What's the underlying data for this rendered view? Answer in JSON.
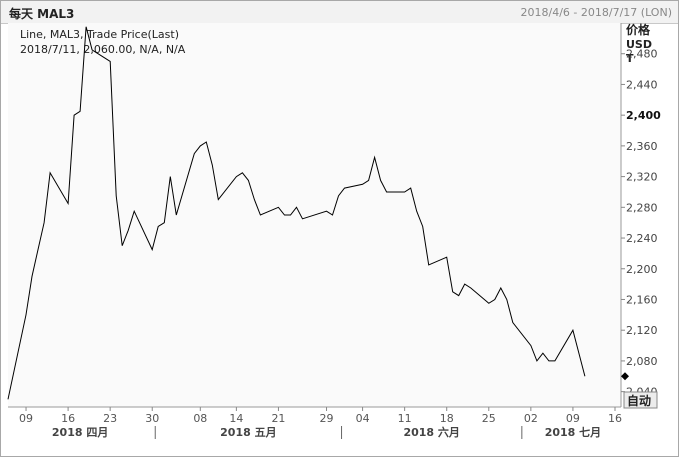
{
  "header": {
    "title": "每天 MAL3",
    "date_range": "2018/4/6 - 2018/7/17 (LON)"
  },
  "legend": {
    "line1": "Line, MAL3, Trade Price(Last)",
    "line2": "2018/7/11, 2,060.00, N/A, N/A"
  },
  "axis": {
    "y_title_line1": "价格",
    "y_title_line2": "USD",
    "y_title_line3": "T",
    "auto_button": "自动"
  },
  "chart_data": {
    "type": "line",
    "ylim": [
      2020,
      2520
    ],
    "y_ticks": [
      {
        "value": 2040,
        "label": "2,040"
      },
      {
        "value": 2080,
        "label": "2,080"
      },
      {
        "value": 2120,
        "label": "2,120"
      },
      {
        "value": 2160,
        "label": "2,160"
      },
      {
        "value": 2200,
        "label": "2,200"
      },
      {
        "value": 2240,
        "label": "2,240"
      },
      {
        "value": 2280,
        "label": "2,280"
      },
      {
        "value": 2320,
        "label": "2,320"
      },
      {
        "value": 2360,
        "label": "2,360"
      },
      {
        "value": 2400,
        "label": "2,400",
        "bold": true
      },
      {
        "value": 2440,
        "label": "2,440"
      },
      {
        "value": 2480,
        "label": "2,480"
      }
    ],
    "xlim": [
      "2018-04-06",
      "2018-07-17"
    ],
    "x_ticks": [
      {
        "date": "2018-04-09",
        "label": "09"
      },
      {
        "date": "2018-04-16",
        "label": "16"
      },
      {
        "date": "2018-04-23",
        "label": "23"
      },
      {
        "date": "2018-04-30",
        "label": "30"
      },
      {
        "date": "2018-05-08",
        "label": "08"
      },
      {
        "date": "2018-05-14",
        "label": "14"
      },
      {
        "date": "2018-05-21",
        "label": "21"
      },
      {
        "date": "2018-05-29",
        "label": "29"
      },
      {
        "date": "2018-06-04",
        "label": "04"
      },
      {
        "date": "2018-06-11",
        "label": "11"
      },
      {
        "date": "2018-06-18",
        "label": "18"
      },
      {
        "date": "2018-06-25",
        "label": "25"
      },
      {
        "date": "2018-07-02",
        "label": "02"
      },
      {
        "date": "2018-07-09",
        "label": "09"
      },
      {
        "date": "2018-07-16",
        "label": "16"
      }
    ],
    "months": [
      {
        "label": "2018 四月",
        "start": "2018-04-06",
        "end": "2018-04-30"
      },
      {
        "label": "2018 五月",
        "start": "2018-05-01",
        "end": "2018-05-31"
      },
      {
        "label": "2018 六月",
        "start": "2018-06-01",
        "end": "2018-06-30"
      },
      {
        "label": "2018 七月",
        "start": "2018-07-01",
        "end": "2018-07-17"
      }
    ],
    "last_value": 2060,
    "series": [
      {
        "line_color": "#000000",
        "points": [
          [
            "2018-04-06",
            2030
          ],
          [
            "2018-04-09",
            2140
          ],
          [
            "2018-04-10",
            2190
          ],
          [
            "2018-04-11",
            2225
          ],
          [
            "2018-04-12",
            2260
          ],
          [
            "2018-04-13",
            2325
          ],
          [
            "2018-04-16",
            2285
          ],
          [
            "2018-04-17",
            2400
          ],
          [
            "2018-04-18",
            2405
          ],
          [
            "2018-04-19",
            2515
          ],
          [
            "2018-04-20",
            2485
          ],
          [
            "2018-04-23",
            2470
          ],
          [
            "2018-04-24",
            2295
          ],
          [
            "2018-04-25",
            2230
          ],
          [
            "2018-04-26",
            2250
          ],
          [
            "2018-04-27",
            2275
          ],
          [
            "2018-04-30",
            2225
          ],
          [
            "2018-05-01",
            2255
          ],
          [
            "2018-05-02",
            2260
          ],
          [
            "2018-05-03",
            2320
          ],
          [
            "2018-05-04",
            2270
          ],
          [
            "2018-05-07",
            2350
          ],
          [
            "2018-05-08",
            2360
          ],
          [
            "2018-05-09",
            2365
          ],
          [
            "2018-05-10",
            2335
          ],
          [
            "2018-05-11",
            2290
          ],
          [
            "2018-05-14",
            2320
          ],
          [
            "2018-05-15",
            2325
          ],
          [
            "2018-05-16",
            2315
          ],
          [
            "2018-05-17",
            2290
          ],
          [
            "2018-05-18",
            2270
          ],
          [
            "2018-05-21",
            2280
          ],
          [
            "2018-05-22",
            2270
          ],
          [
            "2018-05-23",
            2270
          ],
          [
            "2018-05-24",
            2280
          ],
          [
            "2018-05-25",
            2265
          ],
          [
            "2018-05-29",
            2275
          ],
          [
            "2018-05-30",
            2270
          ],
          [
            "2018-05-31",
            2295
          ],
          [
            "2018-06-01",
            2305
          ],
          [
            "2018-06-04",
            2310
          ],
          [
            "2018-06-05",
            2315
          ],
          [
            "2018-06-06",
            2345
          ],
          [
            "2018-06-07",
            2315
          ],
          [
            "2018-06-08",
            2300
          ],
          [
            "2018-06-11",
            2300
          ],
          [
            "2018-06-12",
            2305
          ],
          [
            "2018-06-13",
            2275
          ],
          [
            "2018-06-14",
            2255
          ],
          [
            "2018-06-15",
            2205
          ],
          [
            "2018-06-18",
            2215
          ],
          [
            "2018-06-19",
            2170
          ],
          [
            "2018-06-20",
            2165
          ],
          [
            "2018-06-21",
            2180
          ],
          [
            "2018-06-22",
            2175
          ],
          [
            "2018-06-25",
            2155
          ],
          [
            "2018-06-26",
            2160
          ],
          [
            "2018-06-27",
            2175
          ],
          [
            "2018-06-28",
            2160
          ],
          [
            "2018-06-29",
            2130
          ],
          [
            "2018-07-02",
            2100
          ],
          [
            "2018-07-03",
            2080
          ],
          [
            "2018-07-04",
            2090
          ],
          [
            "2018-07-05",
            2080
          ],
          [
            "2018-07-06",
            2080
          ],
          [
            "2018-07-09",
            2120
          ],
          [
            "2018-07-10",
            2090
          ],
          [
            "2018-07-11",
            2060
          ]
        ]
      }
    ],
    "grid": false,
    "legend_position": "top-left"
  }
}
